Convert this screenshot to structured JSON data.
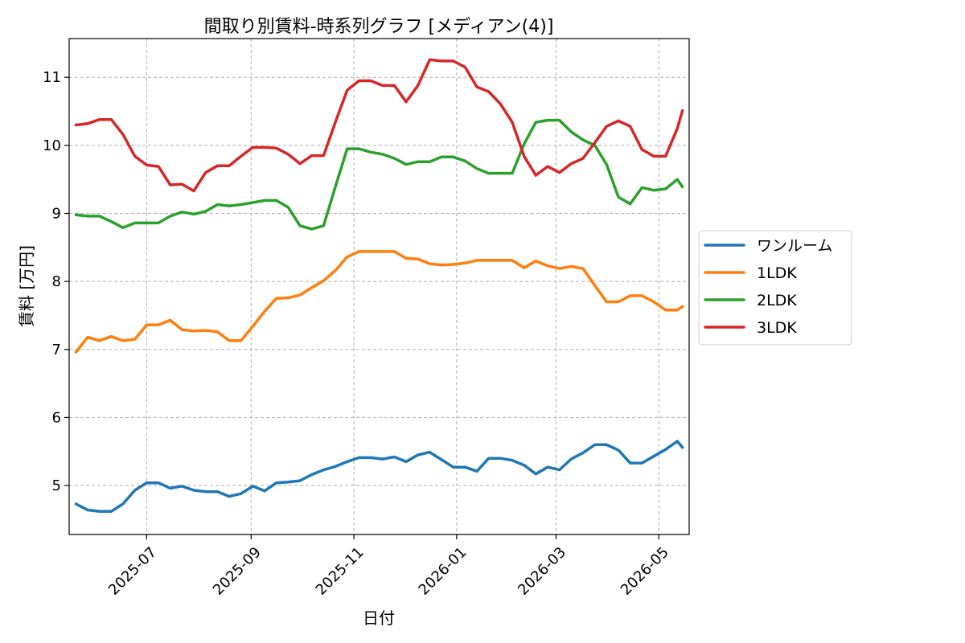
{
  "chart_data": {
    "type": "line",
    "title": "間取り別賃料-時系列グラフ [メディアン(4)]",
    "xlabel": "日付",
    "ylabel": "賃料 [万円]",
    "x": [
      "2025-05-20",
      "2025-05-27",
      "2025-06-03",
      "2025-06-10",
      "2025-06-17",
      "2025-06-24",
      "2025-07-01",
      "2025-07-08",
      "2025-07-15",
      "2025-07-22",
      "2025-07-29",
      "2025-08-05",
      "2025-08-12",
      "2025-08-19",
      "2025-08-26",
      "2025-09-02",
      "2025-09-09",
      "2025-09-16",
      "2025-09-23",
      "2025-09-30",
      "2025-10-07",
      "2025-10-14",
      "2025-10-21",
      "2025-10-28",
      "2025-11-04",
      "2025-11-11",
      "2025-11-18",
      "2025-11-25",
      "2025-12-02",
      "2025-12-09",
      "2025-12-16",
      "2025-12-23",
      "2025-12-30",
      "2026-01-06",
      "2026-01-13",
      "2026-01-20",
      "2026-01-27",
      "2026-02-03",
      "2026-02-10",
      "2026-02-17",
      "2026-02-24",
      "2026-03-03",
      "2026-03-10",
      "2026-03-17",
      "2026-03-24",
      "2026-03-31",
      "2026-04-07",
      "2026-04-14",
      "2026-04-21",
      "2026-04-28",
      "2026-05-05",
      "2026-05-12",
      "2026-05-15"
    ],
    "series": [
      {
        "name": "ワンルーム",
        "color": "#1f77b4",
        "values": [
          4.73,
          4.64,
          4.62,
          4.62,
          4.73,
          4.93,
          5.04,
          5.04,
          4.96,
          4.99,
          4.93,
          4.91,
          4.91,
          4.84,
          4.88,
          4.99,
          4.92,
          5.04,
          5.05,
          5.07,
          5.16,
          5.23,
          5.28,
          5.35,
          5.41,
          5.41,
          5.39,
          5.42,
          5.35,
          5.45,
          5.49,
          5.38,
          5.27,
          5.27,
          5.21,
          5.4,
          5.4,
          5.37,
          5.3,
          5.17,
          5.27,
          5.23,
          5.39,
          5.48,
          5.6,
          5.6,
          5.52,
          5.33,
          5.33,
          5.43,
          5.53,
          5.65,
          5.56
        ]
      },
      {
        "name": "1LDK",
        "color": "#ff7f0e",
        "values": [
          6.96,
          7.18,
          7.13,
          7.19,
          7.13,
          7.15,
          7.36,
          7.36,
          7.43,
          7.29,
          7.27,
          7.28,
          7.26,
          7.13,
          7.13,
          7.34,
          7.56,
          7.75,
          7.76,
          7.8,
          7.91,
          8.01,
          8.16,
          8.36,
          8.44,
          8.44,
          8.44,
          8.44,
          8.34,
          8.33,
          8.26,
          8.24,
          8.25,
          8.27,
          8.31,
          8.31,
          8.31,
          8.31,
          8.2,
          8.3,
          8.23,
          8.19,
          8.22,
          8.19,
          7.94,
          7.7,
          7.7,
          7.79,
          7.79,
          7.7,
          7.58,
          7.58,
          7.63
        ]
      },
      {
        "name": "2LDK",
        "color": "#2ca02c",
        "values": [
          8.98,
          8.96,
          8.96,
          8.88,
          8.79,
          8.86,
          8.86,
          8.86,
          8.96,
          9.02,
          8.99,
          9.03,
          9.13,
          9.11,
          9.13,
          9.16,
          9.19,
          9.19,
          9.09,
          8.82,
          8.77,
          8.82,
          9.39,
          9.95,
          9.95,
          9.9,
          9.87,
          9.81,
          9.72,
          9.76,
          9.76,
          9.83,
          9.83,
          9.77,
          9.66,
          9.59,
          9.59,
          9.59,
          10.02,
          10.34,
          10.37,
          10.37,
          10.2,
          10.08,
          10.0,
          9.72,
          9.24,
          9.14,
          9.38,
          9.34,
          9.36,
          9.5,
          9.39
        ]
      },
      {
        "name": "3LDK",
        "color": "#d62728",
        "values": [
          10.3,
          10.32,
          10.38,
          10.38,
          10.16,
          9.84,
          9.71,
          9.69,
          9.42,
          9.43,
          9.33,
          9.6,
          9.7,
          9.7,
          9.84,
          9.97,
          9.97,
          9.96,
          9.87,
          9.73,
          9.85,
          9.85,
          10.34,
          10.81,
          10.95,
          10.95,
          10.88,
          10.88,
          10.64,
          10.88,
          11.26,
          11.24,
          11.24,
          11.15,
          10.86,
          10.79,
          10.61,
          10.34,
          9.84,
          9.56,
          9.69,
          9.6,
          9.73,
          9.81,
          10.04,
          10.28,
          10.36,
          10.28,
          9.94,
          9.84,
          9.84,
          10.25,
          10.51
        ]
      }
    ],
    "yticks": [
      5,
      6,
      7,
      8,
      9,
      10,
      11
    ],
    "ylim": [
      4.28,
      11.57
    ],
    "xticks": [
      {
        "date": "2025-07-01",
        "label": "2025-07"
      },
      {
        "date": "2025-09-01",
        "label": "2025-09"
      },
      {
        "date": "2025-11-01",
        "label": "2025-11"
      },
      {
        "date": "2026-01-01",
        "label": "2026-01"
      },
      {
        "date": "2026-03-01",
        "label": "2026-03"
      },
      {
        "date": "2026-05-01",
        "label": "2026-05"
      }
    ],
    "xlim": [
      "2025-05-16",
      "2026-05-19"
    ],
    "grid": true,
    "legend_position": "outside-right"
  }
}
